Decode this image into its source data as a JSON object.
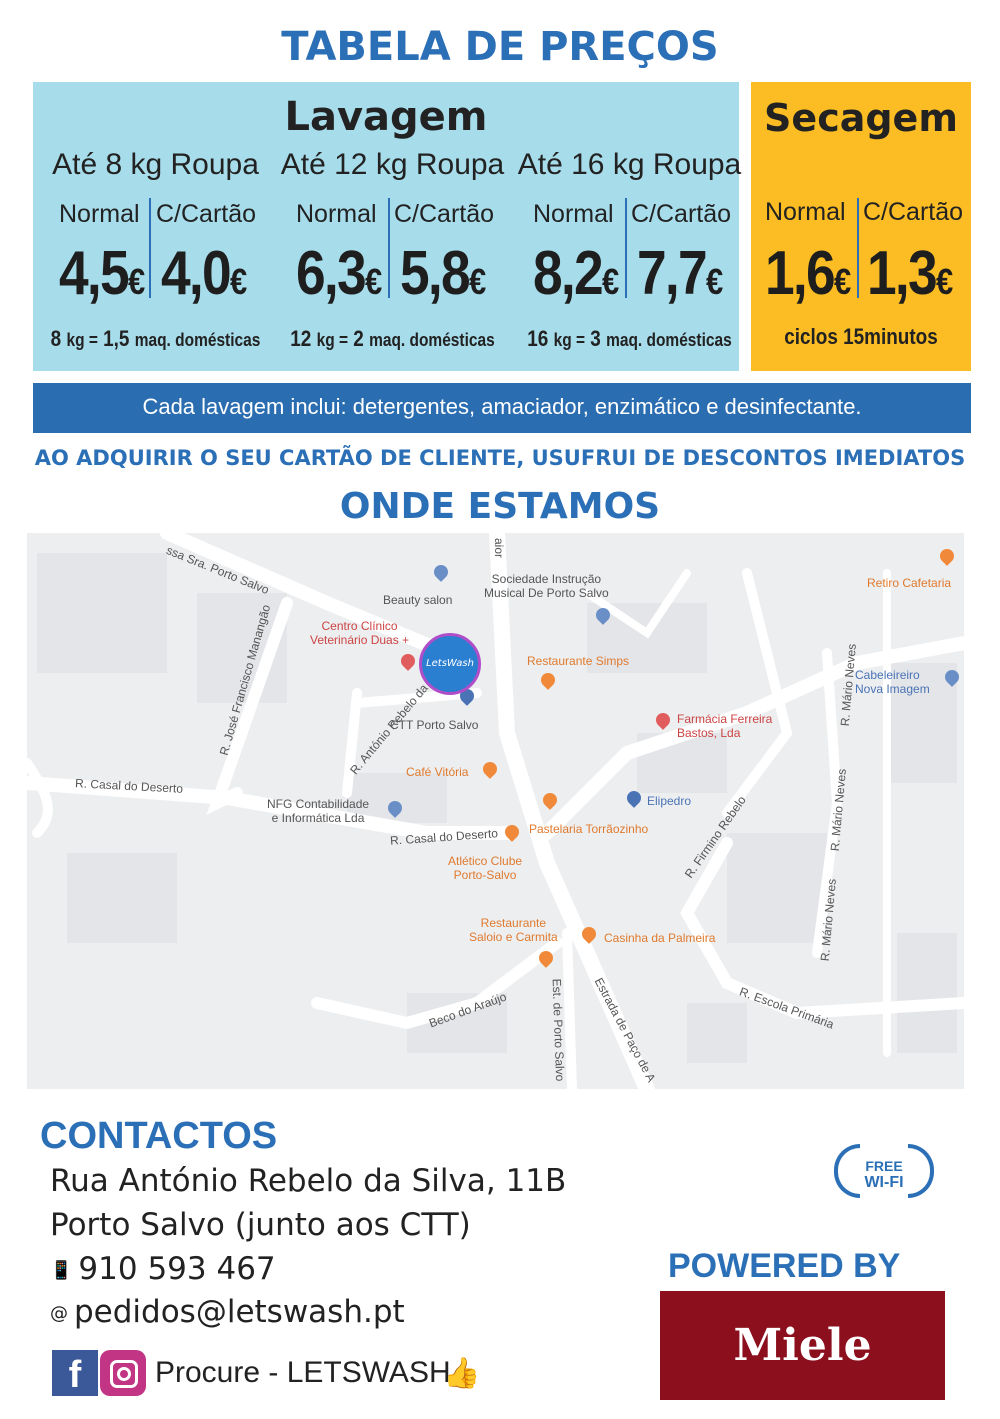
{
  "header": {
    "title": "TABELA DE PREÇOS"
  },
  "lavagem": {
    "title": "Lavagem",
    "columns": [
      {
        "title": "Até 8 kg Roupa",
        "normal_label": "Normal",
        "card_label": "C/Cartão",
        "normal_price": "4,5",
        "card_price": "4,0",
        "currency": "€",
        "footer_kg": "8",
        "footer_eq": "1,5",
        "footer_text": "maq. domésticas"
      },
      {
        "title": "Até 12 kg Roupa",
        "normal_label": "Normal",
        "card_label": "C/Cartão",
        "normal_price": "6,3",
        "card_price": "5,8",
        "currency": "€",
        "footer_kg": "12",
        "footer_eq": "2",
        "footer_text": "maq. domésticas"
      },
      {
        "title": "Até 16 kg Roupa",
        "normal_label": "Normal",
        "card_label": "C/Cartão",
        "normal_price": "8,2",
        "card_price": "7,7",
        "currency": "€",
        "footer_kg": "16",
        "footer_eq": "3",
        "footer_text": "maq. domésticas"
      }
    ],
    "kg_unit": "kg ="
  },
  "secagem": {
    "title": "Secagem",
    "normal_label": "Normal",
    "card_label": "C/Cartão",
    "normal_price": "1,6",
    "card_price": "1,3",
    "currency": "€",
    "footer": "ciclos 15minutos"
  },
  "includes_bar": "Cada lavagem inclui: detergentes, amaciador, enzimático e desinfectante.",
  "promo": "AO ADQUIRIR O SEU CARTÃO DE CLIENTE, USUFRUI DE DESCONTOS IMEDIATOS",
  "where_title": "ONDE ESTAMOS",
  "map": {
    "labels": {
      "beauty": "Beauty salon",
      "sociedade": "Sociedade Instrução\nMusical De Porto Salvo",
      "retiro": "Retiro Cafetaria",
      "centro": "Centro Clínico\nVeterinário Duas +",
      "simps": "Restaurante Simps",
      "cabeleireiro": "Cabeleireiro\nNova Imagem",
      "ctt": "CTT Porto Salvo",
      "farmacia": "Farmácia Ferreira\nBastos, Lda",
      "cafe": "Café Vitória",
      "elipedro": "Elipedro",
      "nfg": "NFG Contabilidade\ne Informática Lda",
      "pastelaria": "Pastelaria Torrãozinho",
      "atletico": "Atlético Clube\nPorto-Salvo",
      "saloio": "Restaurante\nSaloio e Carmita",
      "casinha": "Casinha da Palmeira",
      "casal": "R. Casal do Deserto",
      "casal2": "R. Casal do Deserto",
      "araujo": "Beco do Araújo",
      "escola": "R. Escola Primária",
      "letswash": "LetsWash",
      "portosalvo": "ssa Sra. Porto Salvo",
      "manangao": "R. José Francisco Manangão",
      "rebelo": "R. António Rebelo da Silva",
      "firmino": "R. Firmino Rebelo",
      "mario1": "R. Mário Neves",
      "mario2": "R. Mário Neves",
      "mario3": "R. Mário Neves",
      "estpaco": "Estrada de Paço de A",
      "estporto": "Est. de Porto Salvo",
      "aior": "aior"
    }
  },
  "contacts": {
    "title": "CONTACTOS",
    "address1": "Rua António Rebelo da Silva, 11B",
    "address2": "Porto Salvo (junto aos CTT)",
    "phone": "910 593 467",
    "email": "pedidos@letswash.pt",
    "social": "Procure - LETSWASH"
  },
  "wifi": {
    "line1": "FREE",
    "line2": "WI-FI"
  },
  "powered": "POWERED BY",
  "brand": "Miele",
  "colors": {
    "lavagem_bg": "#a7dceb",
    "secagem_bg": "#fbbd23",
    "accent_blue": "#2b6fb6",
    "miele_red": "#8b0f1c"
  }
}
